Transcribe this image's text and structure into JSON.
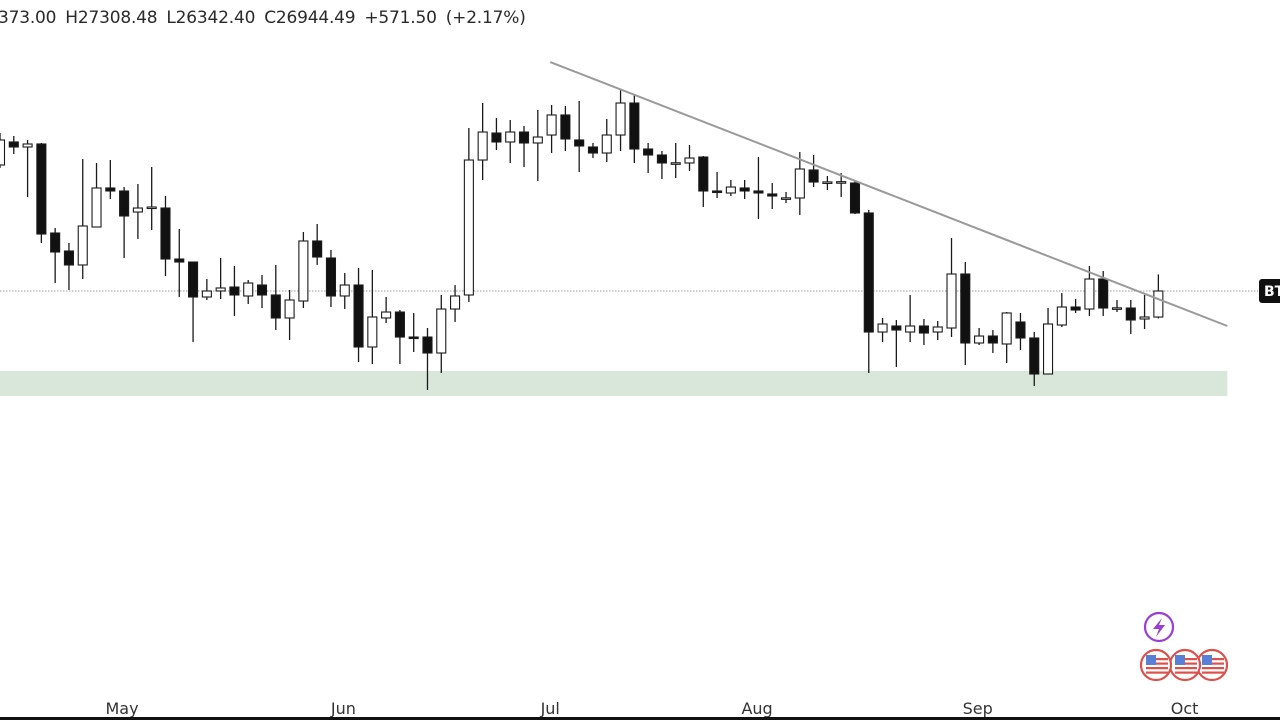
{
  "header": {
    "open_partial": "373.00",
    "high": "H27308.48",
    "low": "L26342.40",
    "close": "C26944.49",
    "change": "+571.50",
    "change_pct": "(+2.17%)"
  },
  "chart_data": {
    "type": "candlestick",
    "title": "",
    "ohlc_fields": [
      "open",
      "high",
      "low",
      "close"
    ],
    "candles": [
      [
        29712,
        30414,
        29646,
        30261
      ],
      [
        30217,
        30348,
        29953,
        30107
      ],
      [
        30107,
        30261,
        29009,
        30173
      ],
      [
        30173,
        30195,
        27999,
        28196
      ],
      [
        28218,
        28328,
        27120,
        27801
      ],
      [
        27823,
        27999,
        26967,
        27516
      ],
      [
        27516,
        29843,
        27208,
        28372
      ],
      [
        28350,
        29756,
        28350,
        29207
      ],
      [
        29207,
        29821,
        28965,
        29141
      ],
      [
        29141,
        29228,
        27669,
        28592
      ],
      [
        28679,
        29294,
        28087,
        28767
      ],
      [
        28767,
        29668,
        28284,
        28789
      ],
      [
        28767,
        29031,
        27274,
        27647
      ],
      [
        27647,
        28306,
        26813,
        27581
      ],
      [
        27581,
        27581,
        25825,
        26813
      ],
      [
        26813,
        27208,
        26747,
        26945
      ],
      [
        26945,
        27669,
        26769,
        27011
      ],
      [
        27032,
        27494,
        26396,
        26857
      ],
      [
        26835,
        27186,
        26659,
        27120
      ],
      [
        27076,
        27296,
        26571,
        26857
      ],
      [
        26857,
        27516,
        26088,
        26352
      ],
      [
        26352,
        26967,
        25869,
        26747
      ],
      [
        26725,
        28240,
        26571,
        28043
      ],
      [
        28043,
        28416,
        27516,
        27691
      ],
      [
        27669,
        27845,
        26593,
        26835
      ],
      [
        26835,
        27340,
        26549,
        27076
      ],
      [
        27076,
        27450,
        25385,
        25715
      ],
      [
        25715,
        27406,
        25342,
        26374
      ],
      [
        26352,
        26813,
        26242,
        26483
      ],
      [
        26483,
        26527,
        25342,
        25934
      ],
      [
        25934,
        26462,
        25605,
        25913
      ],
      [
        25934,
        26132,
        24771,
        25583
      ],
      [
        25583,
        26857,
        25144,
        26549
      ],
      [
        26549,
        27076,
        26264,
        26835
      ],
      [
        26857,
        30524,
        26703,
        29821
      ],
      [
        29821,
        31073,
        29382,
        30436
      ],
      [
        30414,
        30744,
        30041,
        30217
      ],
      [
        30217,
        30700,
        29756,
        30436
      ],
      [
        30436,
        30568,
        29668,
        30195
      ],
      [
        30195,
        30919,
        29360,
        30326
      ],
      [
        30370,
        31029,
        29975,
        30810
      ],
      [
        30810,
        31007,
        30019,
        30283
      ],
      [
        30261,
        31117,
        29558,
        30129
      ],
      [
        30107,
        30195,
        29865,
        29975
      ],
      [
        29975,
        30722,
        29777,
        30370
      ],
      [
        30370,
        31359,
        30019,
        31073
      ],
      [
        31073,
        31249,
        29756,
        30063
      ],
      [
        30063,
        30195,
        29536,
        29931
      ],
      [
        29931,
        30019,
        29404,
        29756
      ],
      [
        29756,
        30195,
        29426,
        29760
      ],
      [
        29756,
        30151,
        29580,
        29865
      ],
      [
        29887,
        29909,
        28789,
        29141
      ],
      [
        29141,
        29558,
        28987,
        29119
      ],
      [
        29097,
        29382,
        29031,
        29228
      ],
      [
        29207,
        29382,
        28965,
        29141
      ],
      [
        29141,
        29887,
        28526,
        29097
      ],
      [
        29075,
        29316,
        28745,
        29031
      ],
      [
        28987,
        29119,
        28877,
        28990
      ],
      [
        28987,
        29997,
        28614,
        29624
      ],
      [
        29602,
        29931,
        29228,
        29338
      ],
      [
        29338,
        29470,
        29163,
        29340
      ],
      [
        29340,
        29536,
        29009,
        29345
      ],
      [
        29316,
        29360,
        28636,
        28658
      ],
      [
        28658,
        28723,
        25144,
        26044
      ],
      [
        26044,
        26352,
        25825,
        26220
      ],
      [
        26176,
        26308,
        25276,
        26088
      ],
      [
        26044,
        26857,
        25825,
        26176
      ],
      [
        26176,
        26330,
        25759,
        26022
      ],
      [
        26044,
        26286,
        25869,
        26154
      ],
      [
        26132,
        28109,
        25934,
        27318
      ],
      [
        27318,
        27581,
        25320,
        25803
      ],
      [
        25803,
        26132,
        25759,
        25956
      ],
      [
        25956,
        26088,
        25583,
        25803
      ],
      [
        25781,
        26483,
        25364,
        26462
      ],
      [
        26264,
        26462,
        25649,
        25913
      ],
      [
        25913,
        26044,
        24858,
        25122
      ],
      [
        25122,
        26571,
        25122,
        26220
      ],
      [
        26198,
        26901,
        26154,
        26593
      ],
      [
        26593,
        26769,
        26462,
        26527
      ],
      [
        26549,
        27494,
        26396,
        27208
      ],
      [
        27208,
        27384,
        26396,
        26571
      ],
      [
        26571,
        26747,
        26483,
        26575
      ],
      [
        26571,
        26747,
        26000,
        26308
      ],
      [
        26330,
        26857,
        26110,
        26374
      ],
      [
        26373.0,
        27308.48,
        26342.4,
        26944.49
      ]
    ],
    "x_ticks": [
      {
        "label": "May",
        "at_index": 8.85
      },
      {
        "label": "Jun",
        "at_index": 24.9
      },
      {
        "label": "Jul",
        "at_index": 39.9
      },
      {
        "label": "Aug",
        "at_index": 54.9
      },
      {
        "label": "Sep",
        "at_index": 70.9
      },
      {
        "label": "Oct",
        "at_index": 85.9
      }
    ],
    "trendline": {
      "start": {
        "index": 39.9,
        "price": 31973
      },
      "end": {
        "index": 89.0,
        "price": 26176
      },
      "color": "#9a9a9a"
    },
    "support_zone": {
      "from_index": 0,
      "to_index": 89.0,
      "price_low": 24639,
      "price_high": 25188,
      "color": "#d9e6da"
    },
    "last_price": {
      "value": 26944.49,
      "label": "BT",
      "line_style": "dotted"
    },
    "y_range": [
      17525,
      33335
    ],
    "grid": false,
    "colors": {
      "up_body": "#ffffff",
      "down_body": "#111111",
      "outline": "#1a1a1a"
    }
  },
  "icons": {
    "lightning": {
      "name": "lightning-icon",
      "color": "#9b3fd1"
    },
    "flags": {
      "name": "us-flag-icon",
      "color": "#e0504a",
      "count": 3
    }
  }
}
